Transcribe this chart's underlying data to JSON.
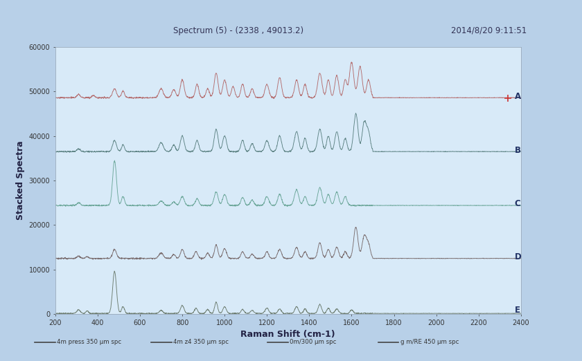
{
  "title_left": "Spectrum (5) - (2338 , 49013.2)",
  "title_right": "2014/8/20 9:11:51",
  "xlabel": "Raman Shift (cm-1)",
  "ylabel": "Stacked Spectra",
  "xmin": 200,
  "xmax": 2400,
  "ymin": 0,
  "ymax": 60000,
  "yticks": [
    0,
    10000,
    20000,
    30000,
    40000,
    50000,
    60000
  ],
  "xticks": [
    200,
    400,
    600,
    800,
    1000,
    1200,
    1400,
    1600,
    1800,
    2000,
    2200,
    2400
  ],
  "outer_bg_color": "#b8d0e8",
  "plot_bg_color": "#d8eaf8",
  "spectra_labels": [
    "A",
    "B",
    "C",
    "D",
    "E"
  ],
  "spectra_offsets": [
    48000,
    36000,
    24000,
    12000,
    0
  ],
  "spectra_colors": [
    "#b06060",
    "#507878",
    "#60a090",
    "#706060",
    "#607060"
  ],
  "label_color": "#223366",
  "flatline_cutoff": 1700,
  "title_fontsize": 8.5,
  "tick_fontsize": 7,
  "axis_label_fontsize": 9,
  "legend_items": [
    {
      "label": "4m press 350 μm spc",
      "color": "#555555"
    },
    {
      "label": "4m z4 350 μm spc",
      "color": "#555555"
    },
    {
      "label": "0m/300 μm spc",
      "color": "#888888"
    },
    {
      "label": "g m/RE 450 μm spc",
      "color": "#333333"
    }
  ],
  "marker_color": "#cc3333"
}
